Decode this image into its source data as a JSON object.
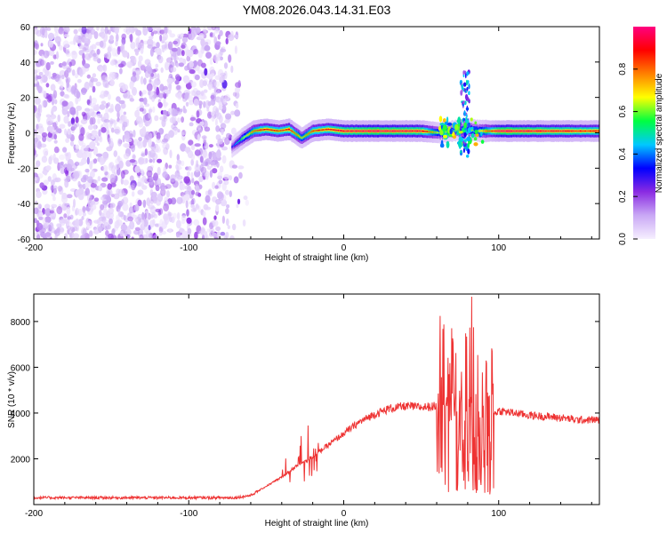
{
  "figure": {
    "title": "YM08.2026.043.14.31.E03"
  },
  "chart_data": [
    {
      "type": "heatmap",
      "name": "spectrogram",
      "xlabel": "Height of straight line (km)",
      "ylabel": "Frequency (Hz)",
      "xlim": [
        -200,
        165
      ],
      "ylim": [
        -60,
        60
      ],
      "xticks": [
        -200,
        -100,
        0,
        100
      ],
      "yticks": [
        -60,
        -40,
        -20,
        0,
        20,
        40,
        60
      ],
      "colorbar": {
        "label": "Normalized spectral amplitude",
        "range": [
          0,
          1
        ],
        "ticks": [
          0.0,
          0.2,
          0.4,
          0.6,
          0.8
        ],
        "tick_labels": [
          "0.0",
          "0.2",
          "0.4",
          "0.6",
          "0.8"
        ],
        "colormap": [
          "#f6efff",
          "#c9a8f5",
          "#8a2be2",
          "#0000ff",
          "#00c8ff",
          "#00ff40",
          "#ffff00",
          "#ff8000",
          "#ff0000",
          "#ff0080"
        ]
      },
      "noise_region": {
        "x_start": -200,
        "x_end": -62,
        "amplitude": 0.15
      },
      "signal_track": [
        {
          "x": -72,
          "freq": -8,
          "amp": 0.3
        },
        {
          "x": -65,
          "freq": -3,
          "amp": 0.55
        },
        {
          "x": -58,
          "freq": 1,
          "amp": 0.75
        },
        {
          "x": -50,
          "freq": 2,
          "amp": 0.85
        },
        {
          "x": -42,
          "freq": 1,
          "amp": 0.8
        },
        {
          "x": -35,
          "freq": 2,
          "amp": 0.85
        },
        {
          "x": -27,
          "freq": -3,
          "amp": 0.65
        },
        {
          "x": -20,
          "freq": 1,
          "amp": 0.8
        },
        {
          "x": -10,
          "freq": 2,
          "amp": 0.85
        },
        {
          "x": 0,
          "freq": 1,
          "amp": 0.9
        },
        {
          "x": 20,
          "freq": 1,
          "amp": 0.95
        },
        {
          "x": 50,
          "freq": 1,
          "amp": 0.9
        },
        {
          "x": 62,
          "freq": 0,
          "amp": 0.6
        },
        {
          "x": 70,
          "freq": 1,
          "amp": 0.55
        },
        {
          "x": 80,
          "freq": 2,
          "amp": 0.55
        },
        {
          "x": 88,
          "freq": 1,
          "amp": 0.6
        },
        {
          "x": 100,
          "freq": 1,
          "amp": 0.95
        },
        {
          "x": 130,
          "freq": 1,
          "amp": 0.9
        },
        {
          "x": 165,
          "freq": 1,
          "amp": 0.85
        }
      ],
      "burst": {
        "x_center": 78,
        "freq_min": -15,
        "freq_max": 35
      }
    },
    {
      "type": "line",
      "name": "snr",
      "xlabel": "Height of straight line (km)",
      "ylabel": "SNR (10 * v/v)",
      "xlim": [
        -200,
        165
      ],
      "ylim": [
        0,
        9200
      ],
      "xticks": [
        -200,
        -100,
        0,
        100
      ],
      "yticks": [
        2000,
        4000,
        6000,
        8000
      ],
      "color": "#ee3333",
      "series": [
        {
          "name": "SNR",
          "x": [
            -200,
            -150,
            -100,
            -70,
            -60,
            -50,
            -40,
            -30,
            -20,
            -10,
            0,
            10,
            20,
            30,
            40,
            50,
            60,
            65,
            70,
            75,
            80,
            85,
            90,
            95,
            100,
            110,
            120,
            130,
            140,
            150,
            165
          ],
          "y": [
            300,
            300,
            300,
            300,
            400,
            800,
            1200,
            1700,
            2100,
            2600,
            3100,
            3600,
            3950,
            4200,
            4300,
            4250,
            4300,
            4000,
            4500,
            3500,
            5200,
            3000,
            5000,
            3900,
            4100,
            4000,
            3900,
            3850,
            3800,
            3700,
            3700
          ]
        }
      ],
      "bursts": [
        {
          "x_start": 60,
          "x_end": 97,
          "y_min": 200,
          "y_max": 9200
        },
        {
          "x_start": -40,
          "x_end": -15,
          "y_min": 900,
          "y_max": 3700
        }
      ]
    }
  ]
}
